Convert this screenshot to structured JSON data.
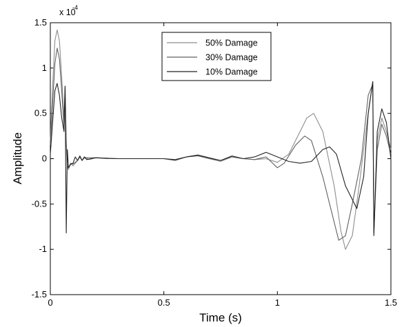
{
  "chart_data": {
    "type": "line",
    "xlabel": "Time (s)",
    "ylabel": "Amplitude",
    "xlim": [
      0,
      1.5
    ],
    "ylim": [
      -1.5,
      1.5
    ],
    "y_scale_note": "x 10",
    "y_scale_exponent": "-4",
    "x_ticks": [
      "0",
      "0.5",
      "1",
      "1.5"
    ],
    "y_ticks": [
      "-1.5",
      "-1",
      "-0.5",
      "0",
      "0.5",
      "1",
      "1.5"
    ],
    "grid": false,
    "legend_position": "top-right",
    "series": [
      {
        "name": "50% Damage",
        "color": "#8c8c8c",
        "points": [
          [
            0,
            0.2
          ],
          [
            0.01,
            0.8
          ],
          [
            0.02,
            1.3
          ],
          [
            0.03,
            1.42
          ],
          [
            0.04,
            1.3
          ],
          [
            0.05,
            0.9
          ],
          [
            0.06,
            0.45
          ],
          [
            0.065,
            0.8
          ],
          [
            0.07,
            0.2
          ],
          [
            0.075,
            -0.1
          ],
          [
            0.08,
            -0.12
          ],
          [
            0.09,
            -0.05
          ],
          [
            0.1,
            -0.08
          ],
          [
            0.12,
            -0.02
          ],
          [
            0.13,
            0.02
          ],
          [
            0.14,
            -0.02
          ],
          [
            0.15,
            0.02
          ],
          [
            0.17,
            -0.01
          ],
          [
            0.2,
            0.01
          ],
          [
            0.25,
            0.0
          ],
          [
            0.3,
            0.0
          ],
          [
            0.4,
            0.0
          ],
          [
            0.45,
            0.0
          ],
          [
            0.5,
            0.0
          ],
          [
            0.55,
            -0.02
          ],
          [
            0.6,
            0.02
          ],
          [
            0.65,
            0.04
          ],
          [
            0.7,
            0.0
          ],
          [
            0.75,
            -0.03
          ],
          [
            0.8,
            0.02
          ],
          [
            0.85,
            0.0
          ],
          [
            0.9,
            -0.01
          ],
          [
            0.95,
            0.0
          ],
          [
            1.0,
            -0.04
          ],
          [
            1.05,
            0.05
          ],
          [
            1.1,
            0.3
          ],
          [
            1.13,
            0.45
          ],
          [
            1.16,
            0.5
          ],
          [
            1.2,
            0.3
          ],
          [
            1.25,
            -0.3
          ],
          [
            1.28,
            -0.8
          ],
          [
            1.3,
            -1.0
          ],
          [
            1.33,
            -0.85
          ],
          [
            1.36,
            -0.3
          ],
          [
            1.4,
            0.5
          ],
          [
            1.42,
            0.85
          ],
          [
            1.425,
            -0.8
          ],
          [
            1.44,
            0.2
          ],
          [
            1.46,
            0.45
          ],
          [
            1.48,
            0.3
          ],
          [
            1.5,
            0.1
          ]
        ]
      },
      {
        "name": "30% Damage",
        "color": "#606060",
        "points": [
          [
            0,
            0.15
          ],
          [
            0.01,
            0.6
          ],
          [
            0.02,
            1.05
          ],
          [
            0.03,
            1.22
          ],
          [
            0.04,
            1.1
          ],
          [
            0.05,
            0.75
          ],
          [
            0.06,
            0.35
          ],
          [
            0.065,
            0.78
          ],
          [
            0.07,
            0.15
          ],
          [
            0.075,
            -0.08
          ],
          [
            0.08,
            -0.1
          ],
          [
            0.09,
            -0.05
          ],
          [
            0.1,
            -0.06
          ],
          [
            0.12,
            -0.02
          ],
          [
            0.13,
            0.02
          ],
          [
            0.14,
            -0.02
          ],
          [
            0.15,
            0.01
          ],
          [
            0.2,
            0.01
          ],
          [
            0.3,
            0.0
          ],
          [
            0.4,
            0.0
          ],
          [
            0.5,
            0.0
          ],
          [
            0.55,
            -0.02
          ],
          [
            0.6,
            0.02
          ],
          [
            0.65,
            0.03
          ],
          [
            0.7,
            0.0
          ],
          [
            0.75,
            -0.02
          ],
          [
            0.8,
            0.02
          ],
          [
            0.85,
            0.0
          ],
          [
            0.9,
            -0.01
          ],
          [
            0.95,
            0.02
          ],
          [
            1.0,
            -0.1
          ],
          [
            1.03,
            -0.05
          ],
          [
            1.08,
            0.15
          ],
          [
            1.12,
            0.25
          ],
          [
            1.15,
            0.2
          ],
          [
            1.2,
            -0.2
          ],
          [
            1.24,
            -0.6
          ],
          [
            1.27,
            -0.9
          ],
          [
            1.3,
            -0.85
          ],
          [
            1.33,
            -0.5
          ],
          [
            1.37,
            0.0
          ],
          [
            1.4,
            0.7
          ],
          [
            1.42,
            0.82
          ],
          [
            1.425,
            -0.82
          ],
          [
            1.44,
            0.1
          ],
          [
            1.46,
            0.38
          ],
          [
            1.48,
            0.25
          ],
          [
            1.5,
            0.05
          ]
        ]
      },
      {
        "name": "10% Damage",
        "color": "#202020",
        "points": [
          [
            0,
            0.05
          ],
          [
            0.01,
            0.4
          ],
          [
            0.02,
            0.75
          ],
          [
            0.03,
            0.83
          ],
          [
            0.04,
            0.7
          ],
          [
            0.05,
            0.45
          ],
          [
            0.06,
            0.3
          ],
          [
            0.065,
            0.8
          ],
          [
            0.07,
            -0.82
          ],
          [
            0.075,
            0.1
          ],
          [
            0.08,
            -0.1
          ],
          [
            0.09,
            -0.06
          ],
          [
            0.1,
            -0.05
          ],
          [
            0.11,
            0.02
          ],
          [
            0.12,
            -0.02
          ],
          [
            0.13,
            0.03
          ],
          [
            0.14,
            -0.02
          ],
          [
            0.15,
            0.02
          ],
          [
            0.16,
            -0.01
          ],
          [
            0.2,
            0.01
          ],
          [
            0.3,
            0.0
          ],
          [
            0.4,
            0.0
          ],
          [
            0.5,
            0.0
          ],
          [
            0.55,
            -0.01
          ],
          [
            0.6,
            0.02
          ],
          [
            0.65,
            0.04
          ],
          [
            0.7,
            0.01
          ],
          [
            0.75,
            -0.02
          ],
          [
            0.8,
            0.03
          ],
          [
            0.85,
            0.0
          ],
          [
            0.9,
            0.02
          ],
          [
            0.95,
            0.07
          ],
          [
            1.0,
            0.02
          ],
          [
            1.05,
            -0.03
          ],
          [
            1.1,
            -0.05
          ],
          [
            1.15,
            -0.03
          ],
          [
            1.2,
            0.1
          ],
          [
            1.23,
            0.13
          ],
          [
            1.26,
            0.05
          ],
          [
            1.3,
            -0.3
          ],
          [
            1.35,
            -0.55
          ],
          [
            1.38,
            -0.2
          ],
          [
            1.4,
            0.5
          ],
          [
            1.42,
            0.85
          ],
          [
            1.425,
            -0.85
          ],
          [
            1.44,
            0.3
          ],
          [
            1.46,
            0.55
          ],
          [
            1.48,
            0.4
          ],
          [
            1.5,
            0.0
          ]
        ]
      }
    ]
  }
}
